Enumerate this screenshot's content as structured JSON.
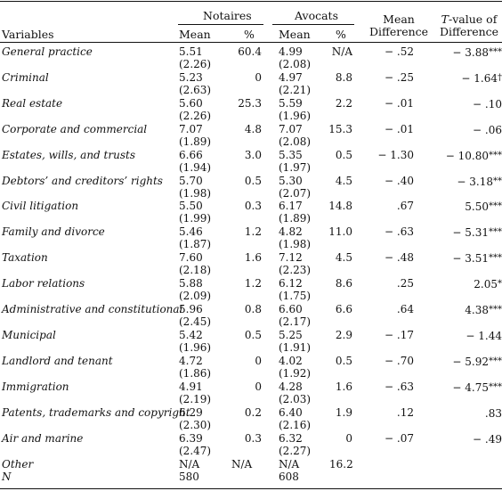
{
  "headers": {
    "variables": "Variables",
    "notaires": "Notaires",
    "avocats": "Avocats",
    "mean_diff_line1": "Mean",
    "mean_diff_line2": "Difference",
    "t_line1_italic": "T",
    "t_line1_rest": "-value of",
    "t_line2": "Difference",
    "mean": "Mean",
    "pct": "%"
  },
  "rows": [
    {
      "label": "General practice",
      "n_mean": "5.51",
      "n_sd": "(2.26)",
      "n_pct": "60.4",
      "a_mean": "4.99",
      "a_sd": "(2.08)",
      "a_pct": "N/A",
      "diff": "− .52",
      "t": "− 3.88",
      "sig": "***"
    },
    {
      "label": "Criminal",
      "n_mean": "5.23",
      "n_sd": "(2.63)",
      "n_pct": "0",
      "a_mean": "4.97",
      "a_sd": "(2.21)",
      "a_pct": "8.8",
      "diff": "− .25",
      "t": "− 1.64",
      "sig": "†"
    },
    {
      "label": "Real estate",
      "n_mean": "5.60",
      "n_sd": "(2.26)",
      "n_pct": "25.3",
      "a_mean": "5.59",
      "a_sd": "(1.96)",
      "a_pct": "2.2",
      "diff": "− .01",
      "t": "− .10",
      "sig": ""
    },
    {
      "label": "Corporate and commercial",
      "n_mean": "7.07",
      "n_sd": "(1.89)",
      "n_pct": "4.8",
      "a_mean": "7.07",
      "a_sd": "(2.08)",
      "a_pct": "15.3",
      "diff": "− .01",
      "t": "− .06",
      "sig": ""
    },
    {
      "label": "Estates, wills, and trusts",
      "n_mean": "6.66",
      "n_sd": "(1.94)",
      "n_pct": "3.0",
      "a_mean": "5.35",
      "a_sd": "(1.97)",
      "a_pct": "0.5",
      "diff": "− 1.30",
      "t": "− 10.80",
      "sig": "***"
    },
    {
      "label": "Debtors’ and creditors’ rights",
      "n_mean": "5.70",
      "n_sd": "(1.98)",
      "n_pct": "0.5",
      "a_mean": "5.30",
      "a_sd": "(2.07)",
      "a_pct": "4.5",
      "diff": "− .40",
      "t": "− 3.18",
      "sig": "**"
    },
    {
      "label": "Civil litigation",
      "n_mean": "5.50",
      "n_sd": "(1.99)",
      "n_pct": "0.3",
      "a_mean": "6.17",
      "a_sd": "(1.89)",
      "a_pct": "14.8",
      "diff": ".67",
      "t": "5.50",
      "sig": "***"
    },
    {
      "label": "Family and divorce",
      "n_mean": "5.46",
      "n_sd": "(1.87)",
      "n_pct": "1.2",
      "a_mean": "4.82",
      "a_sd": "(1.98)",
      "a_pct": "11.0",
      "diff": "− .63",
      "t": "− 5.31",
      "sig": "***"
    },
    {
      "label": "Taxation",
      "n_mean": "7.60",
      "n_sd": "(2.18)",
      "n_pct": "1.6",
      "a_mean": "7.12",
      "a_sd": "(2.23)",
      "a_pct": "4.5",
      "diff": "− .48",
      "t": "− 3.51",
      "sig": "***"
    },
    {
      "label": "Labor relations",
      "n_mean": "5.88",
      "n_sd": "(2.09)",
      "n_pct": "1.2",
      "a_mean": "6.12",
      "a_sd": "(1.75)",
      "a_pct": "8.6",
      "diff": ".25",
      "t": "2.05",
      "sig": "*"
    },
    {
      "label": "Administrative and constitutional",
      "n_mean": "5.96",
      "n_sd": "(2.45)",
      "n_pct": "0.8",
      "a_mean": "6.60",
      "a_sd": "(2.17)",
      "a_pct": "6.6",
      "diff": ".64",
      "t": "4.38",
      "sig": "***"
    },
    {
      "label": "Municipal",
      "n_mean": "5.42",
      "n_sd": "(1.96)",
      "n_pct": "0.5",
      "a_mean": "5.25",
      "a_sd": "(1.91)",
      "a_pct": "2.9",
      "diff": "− .17",
      "t": "− 1.44",
      "sig": ""
    },
    {
      "label": "Landlord and tenant",
      "n_mean": "4.72",
      "n_sd": "(1.86)",
      "n_pct": "0",
      "a_mean": "4.02",
      "a_sd": "(1.92)",
      "a_pct": "0.5",
      "diff": "− .70",
      "t": "− 5.92",
      "sig": "***"
    },
    {
      "label": "Immigration",
      "n_mean": "4.91",
      "n_sd": "(2.19)",
      "n_pct": "0",
      "a_mean": "4.28",
      "a_sd": "(2.03)",
      "a_pct": "1.6",
      "diff": "− .63",
      "t": "− 4.75",
      "sig": "***"
    },
    {
      "label": "Patents, trademarks and copyright",
      "n_mean": "6.29",
      "n_sd": "(2.30)",
      "n_pct": "0.2",
      "a_mean": "6.40",
      "a_sd": "(2.16)",
      "a_pct": "1.9",
      "diff": ".12",
      "t": ".83",
      "sig": ""
    },
    {
      "label": "Air and marine",
      "n_mean": "6.39",
      "n_sd": "(2.47)",
      "n_pct": "0.3",
      "a_mean": "6.32",
      "a_sd": "(2.27)",
      "a_pct": "0",
      "diff": "− .07",
      "t": "− .49",
      "sig": ""
    }
  ],
  "other": {
    "label": "Other",
    "n_mean": "N/A",
    "n_pct": "N/A",
    "a_mean": "N/A",
    "a_pct": "16.2"
  },
  "n_row": {
    "label": "N",
    "n_mean": "580",
    "a_mean": "608"
  }
}
